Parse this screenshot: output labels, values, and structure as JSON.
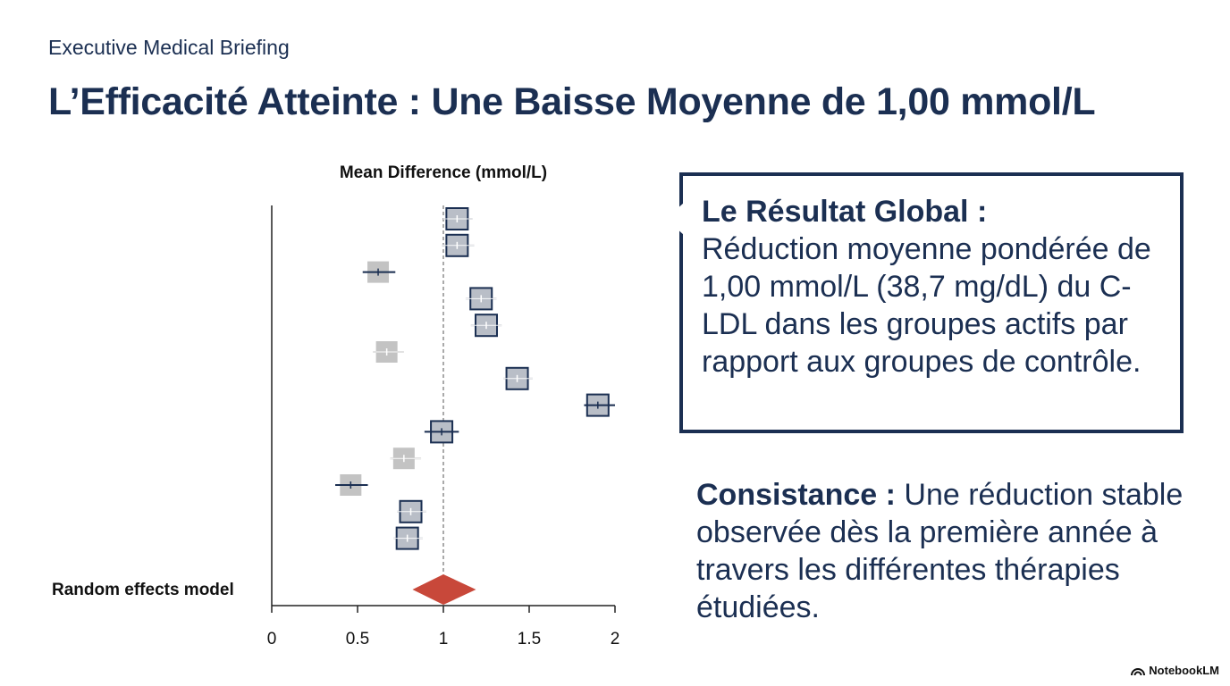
{
  "header": {
    "kicker": "Executive Medical Briefing",
    "title": "L’Efficacité Atteinte : Une Baisse Moyenne de 1,00 mmol/L"
  },
  "chart_data": {
    "type": "forest",
    "title": "Mean Difference (mmol/L)",
    "xlabel": "Mean Difference (mmol/L)",
    "xlim": [
      0,
      2
    ],
    "xticks": [
      0,
      0.5,
      1,
      1.5,
      2
    ],
    "tick_labels": [
      "0",
      "0.5",
      "1",
      "1.5",
      "2"
    ],
    "reference_line": 1,
    "studies": [
      {
        "estimate": 1.08,
        "ci": [
          1.0,
          1.17
        ],
        "highlighted": true
      },
      {
        "estimate": 1.08,
        "ci": [
          0.99,
          1.18
        ],
        "highlighted": true
      },
      {
        "estimate": 0.62,
        "ci": [
          0.53,
          0.72
        ],
        "highlighted": false
      },
      {
        "estimate": 1.22,
        "ci": [
          1.13,
          1.31
        ],
        "highlighted": true
      },
      {
        "estimate": 1.25,
        "ci": [
          1.16,
          1.34
        ],
        "highlighted": true
      },
      {
        "estimate": 0.67,
        "ci": [
          0.59,
          0.77
        ],
        "highlighted": false
      },
      {
        "estimate": 1.43,
        "ci": [
          1.35,
          1.52
        ],
        "highlighted": true
      },
      {
        "estimate": 1.9,
        "ci": [
          1.82,
          2.0
        ],
        "highlighted": true
      },
      {
        "estimate": 0.99,
        "ci": [
          0.89,
          1.09
        ],
        "highlighted": true
      },
      {
        "estimate": 0.77,
        "ci": [
          0.69,
          0.87
        ],
        "highlighted": false
      },
      {
        "estimate": 0.46,
        "ci": [
          0.37,
          0.56
        ],
        "highlighted": false
      },
      {
        "estimate": 0.81,
        "ci": [
          0.73,
          0.9
        ],
        "highlighted": true
      },
      {
        "estimate": 0.79,
        "ci": [
          0.71,
          0.88
        ],
        "highlighted": true
      }
    ],
    "pooled": {
      "label": "Random effects model",
      "estimate": 1.0,
      "ci": [
        0.82,
        1.19
      ]
    }
  },
  "callout": {
    "heading": "Le Résultat Global :",
    "body": "Réduction moyenne pondérée de 1,00 mmol/L (38,7 mg/dL) du C-LDL dans les groupes actifs par rapport aux groupes de contrôle."
  },
  "consistency": {
    "label": "Consistance :",
    "body": " Une réduction stable observée dès la première année à travers les différentes thérapies étudiées."
  },
  "footer": {
    "brand": "NotebookLM"
  },
  "colors": {
    "navy": "#1b2f52",
    "highlight_box": "#b9bec7",
    "muted_box": "#c3c3c3",
    "pooled": "#c8483a",
    "text": "#111111"
  }
}
